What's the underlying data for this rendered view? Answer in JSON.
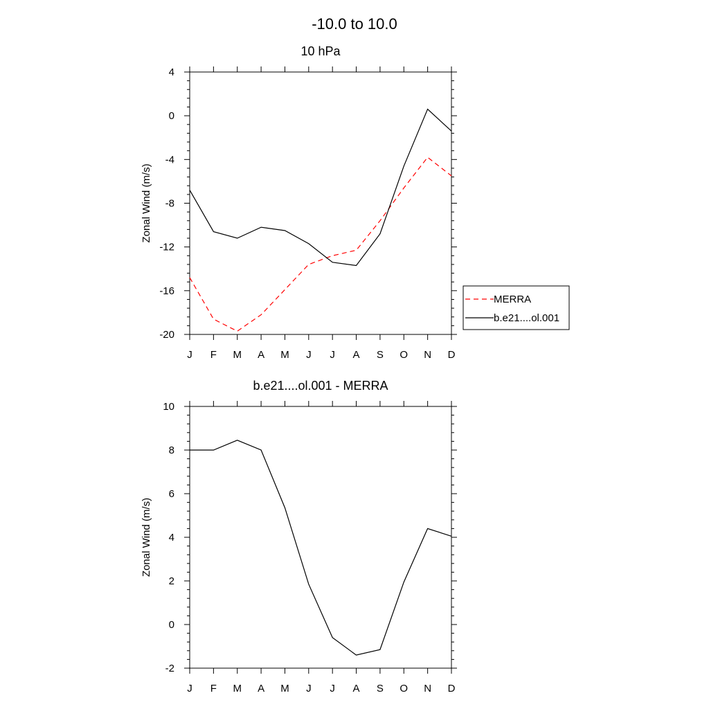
{
  "figure": {
    "title": "-10.0 to  10.0"
  },
  "chart_data": [
    {
      "type": "line",
      "title": "10 hPa",
      "xlabel": "",
      "ylabel": "Zonal Wind (m/s)",
      "categories": [
        "J",
        "F",
        "M",
        "A",
        "M",
        "J",
        "J",
        "A",
        "S",
        "O",
        "N",
        "D"
      ],
      "ylim": [
        -20,
        4
      ],
      "yticks": [
        -20,
        -16,
        -12,
        -8,
        -4,
        0,
        4
      ],
      "grid": false,
      "legend_position": "right",
      "series": [
        {
          "name": "MERRA",
          "color": "#ff0000",
          "dash": "dashed",
          "values": [
            -14.8,
            -18.6,
            -19.7,
            -18.2,
            -15.9,
            -13.6,
            -12.8,
            -12.3,
            -9.6,
            -6.6,
            -3.8,
            -5.5
          ]
        },
        {
          "name": "b.e21....ol.001",
          "color": "#000000",
          "dash": "solid",
          "values": [
            -6.8,
            -10.6,
            -11.2,
            -10.2,
            -10.5,
            -11.7,
            -13.4,
            -13.7,
            -10.8,
            -4.6,
            0.6,
            -1.4
          ]
        }
      ]
    },
    {
      "type": "line",
      "title": "b.e21....ol.001 - MERRA",
      "xlabel": "",
      "ylabel": "Zonal Wind (m/s)",
      "categories": [
        "J",
        "F",
        "M",
        "A",
        "M",
        "J",
        "J",
        "A",
        "S",
        "O",
        "N",
        "D"
      ],
      "ylim": [
        -2,
        10
      ],
      "yticks": [
        -2,
        0,
        2,
        4,
        6,
        8,
        10
      ],
      "grid": false,
      "series": [
        {
          "color": "#000000",
          "dash": "solid",
          "values": [
            8.0,
            8.0,
            8.45,
            8.0,
            5.35,
            1.85,
            -0.6,
            -1.4,
            -1.15,
            1.95,
            4.4,
            4.05
          ]
        }
      ]
    }
  ]
}
